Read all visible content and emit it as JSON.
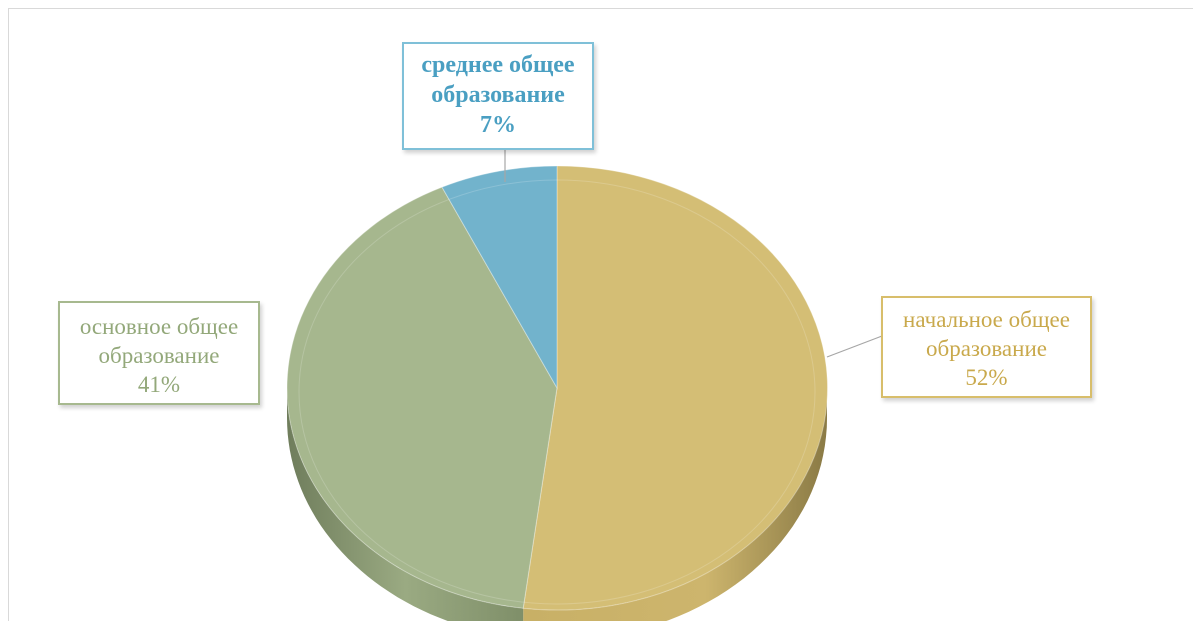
{
  "chart_data": {
    "type": "pie",
    "title": "",
    "slices": [
      {
        "label": "начальное общее образование",
        "value": 52,
        "value_label": "52%",
        "color": "#d4be75"
      },
      {
        "label": "основное общее образование",
        "value": 41,
        "value_label": "41%",
        "color": "#a6b78e"
      },
      {
        "label": "среднее общее образование",
        "value": 7,
        "value_label": "7%",
        "color": "#72b3cc"
      }
    ],
    "style": "3d",
    "legend": "none"
  },
  "labels": {
    "right": {
      "line1": "начальное общее",
      "line2": "образование",
      "pct": "52%"
    },
    "left": {
      "line1": "основное общее",
      "line2": "образование",
      "pct": "41%"
    },
    "top": {
      "line1": "среднее общее",
      "line2": "образование",
      "pct": "7%"
    }
  }
}
